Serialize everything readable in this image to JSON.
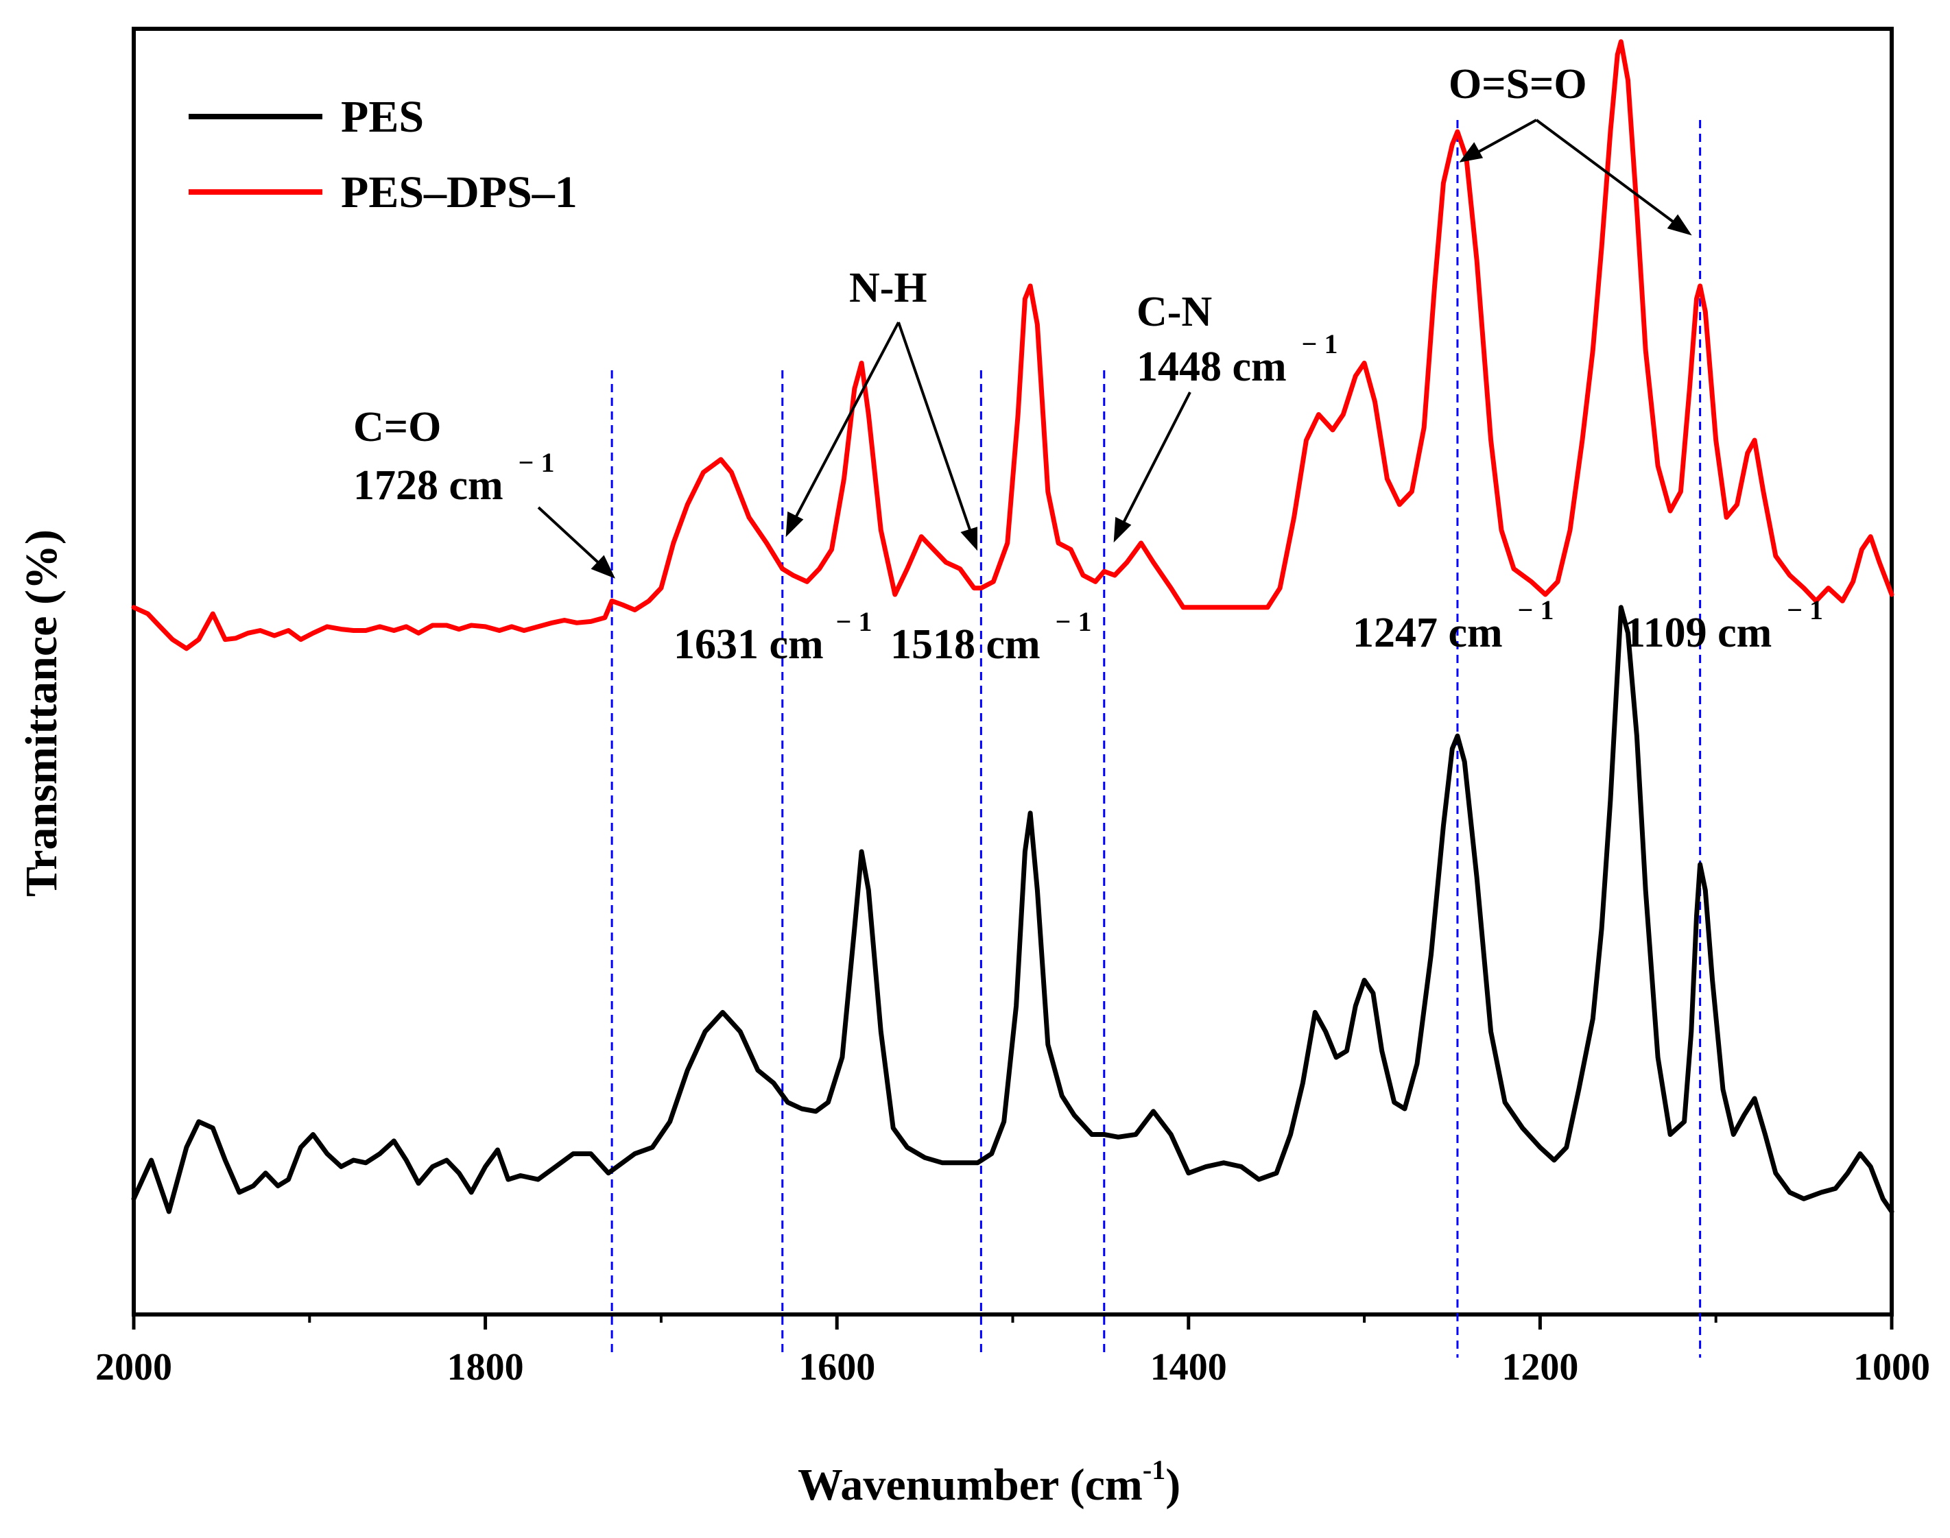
{
  "chart_data": {
    "type": "line",
    "xlabel": "Wavenumber (cm",
    "xlabel_unit_sup": "-1",
    "xlabel_close": ")",
    "ylabel": "Transmittance (%)",
    "xlim": [
      2000,
      1000
    ],
    "ylim": [
      0,
      100
    ],
    "x_ticks": [
      2000,
      1800,
      1600,
      1400,
      1200,
      1000
    ],
    "legend": {
      "position": "top-left",
      "entries": [
        "PES",
        "PES–DPS–1"
      ]
    },
    "colors": {
      "PES": "#000000",
      "PES–DPS–1": "#ff0000",
      "guide": "#0000ff"
    },
    "series": [
      {
        "name": "PES",
        "color": "#000000",
        "points": [
          [
            2000,
            9
          ],
          [
            1990,
            12
          ],
          [
            1980,
            8
          ],
          [
            1970,
            13
          ],
          [
            1963,
            15
          ],
          [
            1955,
            14.5
          ],
          [
            1948,
            12
          ],
          [
            1940,
            9.5
          ],
          [
            1932,
            10
          ],
          [
            1925,
            11
          ],
          [
            1918,
            10
          ],
          [
            1912,
            10.5
          ],
          [
            1905,
            13
          ],
          [
            1898,
            14
          ],
          [
            1890,
            12.5
          ],
          [
            1882,
            11.5
          ],
          [
            1875,
            12
          ],
          [
            1868,
            11.8
          ],
          [
            1860,
            12.5
          ],
          [
            1852,
            13.5
          ],
          [
            1845,
            12
          ],
          [
            1838,
            10.2
          ],
          [
            1830,
            11.5
          ],
          [
            1822,
            12
          ],
          [
            1815,
            11
          ],
          [
            1808,
            9.5
          ],
          [
            1800,
            11.5
          ],
          [
            1793,
            12.8
          ],
          [
            1787,
            10.5
          ],
          [
            1780,
            10.8
          ],
          [
            1770,
            10.5
          ],
          [
            1760,
            11.5
          ],
          [
            1750,
            12.5
          ],
          [
            1740,
            12.5
          ],
          [
            1730,
            11
          ],
          [
            1722,
            11.8
          ],
          [
            1715,
            12.5
          ],
          [
            1705,
            13
          ],
          [
            1695,
            15
          ],
          [
            1685,
            19
          ],
          [
            1675,
            22
          ],
          [
            1665,
            23.5
          ],
          [
            1655,
            22
          ],
          [
            1645,
            19
          ],
          [
            1636,
            18
          ],
          [
            1628,
            16.5
          ],
          [
            1620,
            16
          ],
          [
            1612,
            15.8
          ],
          [
            1605,
            16.5
          ],
          [
            1597,
            20
          ],
          [
            1590,
            30
          ],
          [
            1586,
            36
          ],
          [
            1582,
            33
          ],
          [
            1575,
            22
          ],
          [
            1568,
            14.5
          ],
          [
            1560,
            13
          ],
          [
            1550,
            12.2
          ],
          [
            1540,
            11.8
          ],
          [
            1530,
            11.8
          ],
          [
            1520,
            11.8
          ],
          [
            1512,
            12.5
          ],
          [
            1505,
            15
          ],
          [
            1498,
            24
          ],
          [
            1493,
            36
          ],
          [
            1490,
            39
          ],
          [
            1486,
            33
          ],
          [
            1480,
            21
          ],
          [
            1472,
            17
          ],
          [
            1465,
            15.5
          ],
          [
            1455,
            14
          ],
          [
            1448,
            14
          ],
          [
            1440,
            13.8
          ],
          [
            1430,
            14
          ],
          [
            1420,
            15.8
          ],
          [
            1410,
            14
          ],
          [
            1400,
            11
          ],
          [
            1390,
            11.5
          ],
          [
            1380,
            11.8
          ],
          [
            1370,
            11.5
          ],
          [
            1360,
            10.5
          ],
          [
            1350,
            11
          ],
          [
            1342,
            14
          ],
          [
            1335,
            18
          ],
          [
            1328,
            23.5
          ],
          [
            1322,
            22
          ],
          [
            1316,
            20
          ],
          [
            1310,
            20.5
          ],
          [
            1305,
            24
          ],
          [
            1300,
            26
          ],
          [
            1295,
            25
          ],
          [
            1290,
            20.5
          ],
          [
            1283,
            16.5
          ],
          [
            1277,
            16
          ],
          [
            1270,
            19.5
          ],
          [
            1262,
            28
          ],
          [
            1255,
            38
          ],
          [
            1250,
            44
          ],
          [
            1247,
            45
          ],
          [
            1243,
            43
          ],
          [
            1236,
            34
          ],
          [
            1228,
            22
          ],
          [
            1220,
            16.5
          ],
          [
            1210,
            14.5
          ],
          [
            1200,
            13
          ],
          [
            1192,
            12
          ],
          [
            1185,
            13
          ],
          [
            1178,
            17.5
          ],
          [
            1170,
            23
          ],
          [
            1165,
            30
          ],
          [
            1160,
            40
          ],
          [
            1156,
            50
          ],
          [
            1154,
            55
          ],
          [
            1150,
            53
          ],
          [
            1145,
            45
          ],
          [
            1140,
            33
          ],
          [
            1133,
            20
          ],
          [
            1126,
            14
          ],
          [
            1118,
            15
          ],
          [
            1114,
            22
          ],
          [
            1111,
            31
          ],
          [
            1109,
            35
          ],
          [
            1106,
            33
          ],
          [
            1102,
            26
          ],
          [
            1096,
            17.5
          ],
          [
            1090,
            14
          ],
          [
            1084,
            15.5
          ],
          [
            1078,
            16.8
          ],
          [
            1072,
            14
          ],
          [
            1066,
            11
          ],
          [
            1058,
            9.5
          ],
          [
            1050,
            9
          ],
          [
            1040,
            9.5
          ],
          [
            1032,
            9.8
          ],
          [
            1025,
            11
          ],
          [
            1018,
            12.5
          ],
          [
            1012,
            11.5
          ],
          [
            1005,
            9
          ],
          [
            1000,
            8
          ]
        ]
      },
      {
        "name": "PES–DPS–1",
        "color": "#ff0000",
        "points": [
          [
            2000,
            55
          ],
          [
            1992,
            54.5
          ],
          [
            1985,
            53.5
          ],
          [
            1978,
            52.5
          ],
          [
            1970,
            51.8
          ],
          [
            1963,
            52.5
          ],
          [
            1955,
            54.5
          ],
          [
            1948,
            52.5
          ],
          [
            1942,
            52.6
          ],
          [
            1935,
            53
          ],
          [
            1928,
            53.2
          ],
          [
            1920,
            52.8
          ],
          [
            1912,
            53.2
          ],
          [
            1905,
            52.5
          ],
          [
            1898,
            53
          ],
          [
            1890,
            53.5
          ],
          [
            1882,
            53.3
          ],
          [
            1875,
            53.2
          ],
          [
            1868,
            53.2
          ],
          [
            1860,
            53.5
          ],
          [
            1852,
            53.2
          ],
          [
            1845,
            53.5
          ],
          [
            1838,
            53
          ],
          [
            1830,
            53.6
          ],
          [
            1822,
            53.6
          ],
          [
            1815,
            53.3
          ],
          [
            1808,
            53.6
          ],
          [
            1800,
            53.5
          ],
          [
            1792,
            53.2
          ],
          [
            1785,
            53.5
          ],
          [
            1778,
            53.2
          ],
          [
            1770,
            53.5
          ],
          [
            1762,
            53.8
          ],
          [
            1755,
            54
          ],
          [
            1748,
            53.8
          ],
          [
            1740,
            53.9
          ],
          [
            1732,
            54.2
          ],
          [
            1728,
            55.5
          ],
          [
            1722,
            55.2
          ],
          [
            1715,
            54.8
          ],
          [
            1707,
            55.5
          ],
          [
            1700,
            56.5
          ],
          [
            1693,
            60
          ],
          [
            1685,
            63
          ],
          [
            1676,
            65.5
          ],
          [
            1666,
            66.5
          ],
          [
            1660,
            65.5
          ],
          [
            1650,
            62
          ],
          [
            1640,
            60
          ],
          [
            1631,
            58
          ],
          [
            1625,
            57.5
          ],
          [
            1617,
            57
          ],
          [
            1610,
            58
          ],
          [
            1603,
            59.5
          ],
          [
            1596,
            65
          ],
          [
            1590,
            72
          ],
          [
            1586,
            74
          ],
          [
            1582,
            70
          ],
          [
            1575,
            61
          ],
          [
            1567,
            56
          ],
          [
            1560,
            58
          ],
          [
            1552,
            60.5
          ],
          [
            1545,
            59.5
          ],
          [
            1538,
            58.5
          ],
          [
            1530,
            58
          ],
          [
            1522,
            56.5
          ],
          [
            1518,
            56.5
          ],
          [
            1511,
            57
          ],
          [
            1503,
            60
          ],
          [
            1497,
            70
          ],
          [
            1493,
            79
          ],
          [
            1490,
            80
          ],
          [
            1486,
            77
          ],
          [
            1480,
            64
          ],
          [
            1474,
            60
          ],
          [
            1467,
            59.5
          ],
          [
            1460,
            57.5
          ],
          [
            1453,
            57
          ],
          [
            1448,
            57.8
          ],
          [
            1442,
            57.5
          ],
          [
            1435,
            58.5
          ],
          [
            1427,
            60
          ],
          [
            1420,
            58.5
          ],
          [
            1410,
            56.5
          ],
          [
            1403,
            55
          ],
          [
            1395,
            55
          ],
          [
            1385,
            55
          ],
          [
            1375,
            55
          ],
          [
            1365,
            55
          ],
          [
            1355,
            55
          ],
          [
            1348,
            56.5
          ],
          [
            1340,
            62
          ],
          [
            1333,
            68
          ],
          [
            1326,
            70
          ],
          [
            1318,
            68.8
          ],
          [
            1312,
            70
          ],
          [
            1305,
            73
          ],
          [
            1300,
            74
          ],
          [
            1294,
            71
          ],
          [
            1287,
            65
          ],
          [
            1280,
            63
          ],
          [
            1273,
            64
          ],
          [
            1266,
            69
          ],
          [
            1260,
            80
          ],
          [
            1255,
            88
          ],
          [
            1250,
            91
          ],
          [
            1247,
            92
          ],
          [
            1242,
            90
          ],
          [
            1236,
            82
          ],
          [
            1228,
            68
          ],
          [
            1222,
            61
          ],
          [
            1215,
            58
          ],
          [
            1205,
            57
          ],
          [
            1197,
            56
          ],
          [
            1190,
            57
          ],
          [
            1183,
            61
          ],
          [
            1176,
            68
          ],
          [
            1170,
            75
          ],
          [
            1165,
            83
          ],
          [
            1160,
            92
          ],
          [
            1156,
            98
          ],
          [
            1154,
            99
          ],
          [
            1150,
            96
          ],
          [
            1145,
            86
          ],
          [
            1140,
            75
          ],
          [
            1133,
            66
          ],
          [
            1126,
            62.5
          ],
          [
            1120,
            64
          ],
          [
            1115,
            72
          ],
          [
            1111,
            79
          ],
          [
            1109,
            80
          ],
          [
            1106,
            78
          ],
          [
            1100,
            68
          ],
          [
            1094,
            62
          ],
          [
            1088,
            63
          ],
          [
            1082,
            67
          ],
          [
            1078,
            68
          ],
          [
            1073,
            64
          ],
          [
            1066,
            59
          ],
          [
            1058,
            57.5
          ],
          [
            1050,
            56.5
          ],
          [
            1043,
            55.5
          ],
          [
            1036,
            56.5
          ],
          [
            1028,
            55.5
          ],
          [
            1022,
            57
          ],
          [
            1017,
            59.5
          ],
          [
            1012,
            60.5
          ],
          [
            1007,
            58.5
          ],
          [
            1000,
            56
          ]
        ]
      }
    ],
    "guide_lines": [
      1728,
      1631,
      1518,
      1448,
      1247,
      1109
    ],
    "annotations": [
      {
        "label": "C=O",
        "value": "1728 cm",
        "sup": "− 1"
      },
      {
        "label": "N-H"
      },
      {
        "value": "1631 cm",
        "sup": "− 1"
      },
      {
        "value": "1518 cm",
        "sup": "− 1"
      },
      {
        "label": "C-N",
        "value": "1448 cm",
        "sup": "− 1"
      },
      {
        "label": "O=S=O"
      },
      {
        "value": "1247 cm",
        "sup": "− 1"
      },
      {
        "value": "1109 cm",
        "sup": "− 1"
      }
    ]
  }
}
